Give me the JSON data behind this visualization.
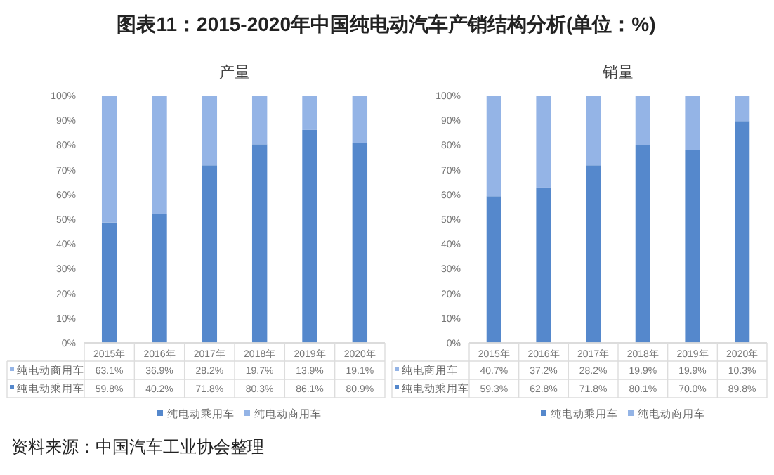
{
  "chart_data": [
    {
      "type": "bar",
      "title": "产量",
      "annotations": [
        "图表11：2015-2020年中国纯电动汽车产销结构分析(单位：%)",
        "资料来源：中国汽车工业协会整理"
      ],
      "categories": [
        "2015年",
        "2016年",
        "2017年",
        "2018年",
        "2019年",
        "2020年"
      ],
      "stacked": true,
      "ylim": [
        0,
        100
      ],
      "yticks": [
        {
          "value": 0,
          "label": "0%"
        },
        {
          "value": 10,
          "label": "10%"
        },
        {
          "value": 20,
          "label": "20%"
        },
        {
          "value": 30,
          "label": "30%"
        },
        {
          "value": 40,
          "label": "40%"
        },
        {
          "value": 50,
          "label": "50%"
        },
        {
          "value": 60,
          "label": "60%"
        },
        {
          "value": 70,
          "label": "70%"
        },
        {
          "value": 80,
          "label": "80%"
        },
        {
          "value": 90,
          "label": "90%"
        },
        {
          "value": 100,
          "label": "100%"
        }
      ],
      "legend": "bottom",
      "y_categories": [
        "纯电动商用车",
        "纯电动乘用车"
      ],
      "cell_labels": [
        [
          "63.1%",
          "36.9%",
          "28.2%",
          "19.7%",
          "13.9%",
          "19.1%"
        ],
        [
          "59.8%",
          "40.2%",
          "71.8%",
          "80.3%",
          "86.1%",
          "80.9%"
        ]
      ],
      "series": [
        {
          "name": "纯电动乘用车",
          "color": "#5588cc",
          "values": [
            48.7,
            52.1,
            71.8,
            80.3,
            86.1,
            80.9
          ]
        },
        {
          "name": "纯电动商用车",
          "color": "#94b4e6",
          "values": [
            51.3,
            47.9,
            28.2,
            19.7,
            13.9,
            19.1
          ]
        }
      ]
    },
    {
      "type": "bar",
      "title": "销量",
      "categories": [
        "2015年",
        "2016年",
        "2017年",
        "2018年",
        "2019年",
        "2020年"
      ],
      "stacked": true,
      "ylim": [
        0,
        100
      ],
      "yticks": [
        {
          "value": 0,
          "label": "0%"
        },
        {
          "value": 10,
          "label": "10%"
        },
        {
          "value": 20,
          "label": "20%"
        },
        {
          "value": 30,
          "label": "30%"
        },
        {
          "value": 40,
          "label": "40%"
        },
        {
          "value": 50,
          "label": "50%"
        },
        {
          "value": 60,
          "label": "60%"
        },
        {
          "value": 70,
          "label": "70%"
        },
        {
          "value": 80,
          "label": "80%"
        },
        {
          "value": 90,
          "label": "90%"
        },
        {
          "value": 100,
          "label": "100%"
        }
      ],
      "legend": "bottom",
      "y_categories": [
        "纯电商用车",
        "纯电动乘用车"
      ],
      "cell_labels": [
        [
          "40.7%",
          "37.2%",
          "28.2%",
          "19.9%",
          "19.9%",
          "10.3%"
        ],
        [
          "59.3%",
          "62.8%",
          "71.8%",
          "80.1%",
          "70.0%",
          "89.8%"
        ]
      ],
      "series": [
        {
          "name": "纯电动乘用车",
          "color": "#5588cc",
          "values": [
            59.3,
            62.8,
            71.8,
            80.1,
            77.9,
            89.7
          ]
        },
        {
          "name": "纯电动商用车",
          "color": "#94b4e6",
          "values": [
            40.7,
            37.2,
            28.2,
            19.9,
            22.1,
            10.3
          ]
        }
      ]
    }
  ]
}
